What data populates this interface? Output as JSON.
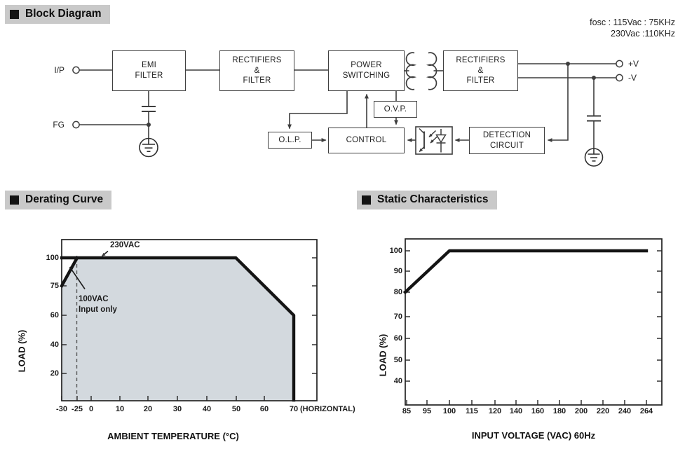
{
  "sections": {
    "block_diagram": "Block Diagram",
    "derating": "Derating Curve",
    "static": "Static Characteristics"
  },
  "block_diagram": {
    "fosc_line1": "fosc : 115Vac : 75KHz",
    "fosc_line2": "230Vac :110KHz",
    "boxes": {
      "emi": "EMI\nFILTER",
      "rect1": "RECTIFIERS\n&\nFILTER",
      "power_switching": "POWER\nSWITCHING",
      "rect2": "RECTIFIERS\n&\nFILTER",
      "ovp": "O.V.P.",
      "olp": "O.L.P.",
      "control": "CONTROL",
      "detection": "DETECTION\nCIRCUIT"
    },
    "terminals": {
      "input": "I/P",
      "fg": "FG",
      "v_plus": "+V",
      "v_minus": "-V"
    },
    "icons": [
      "optocoupler-icon",
      "transformer-icon",
      "earth-ground-icon",
      "capacitor-icon"
    ]
  },
  "chart_data": [
    {
      "type": "line",
      "title": "Derating Curve",
      "xlabel": "AMBIENT TEMPERATURE (°C)",
      "ylabel": "LOAD (%)",
      "x_ticks": [
        "-30",
        "-25",
        "0",
        "10",
        "20",
        "30",
        "40",
        "50",
        "60",
        "70"
      ],
      "x_suffix": "(HORIZONTAL)",
      "y_ticks": [
        "100",
        "75",
        "60",
        "40",
        "20"
      ],
      "xlim": [
        -30,
        78
      ],
      "ylim": [
        0,
        115
      ],
      "grid": false,
      "legend_position": "inline-annotations",
      "series": [
        {
          "name": "230VAC",
          "points": [
            [
              -30,
              100
            ],
            [
              50,
              100
            ],
            [
              70,
              60
            ],
            [
              70,
              0
            ]
          ]
        },
        {
          "name": "100VAC Input only",
          "points": [
            [
              -30,
              75
            ],
            [
              -25,
              100
            ]
          ]
        }
      ],
      "fill_area": [
        [
          -30,
          75
        ],
        [
          -25,
          100
        ],
        [
          50,
          100
        ],
        [
          70,
          60
        ],
        [
          70,
          0
        ],
        [
          -30,
          0
        ]
      ],
      "dashed_vline_x": -25,
      "annotations": [
        {
          "text": "230VAC",
          "points_to": "100% load line"
        },
        {
          "text": "100VAC\nInput only",
          "points_to": "rising segment -30 to -25"
        }
      ]
    },
    {
      "type": "line",
      "title": "Static Characteristics",
      "xlabel": "INPUT VOLTAGE (VAC) 60Hz",
      "ylabel": "LOAD (%)",
      "x_ticks": [
        "85",
        "95",
        "100",
        "115",
        "120",
        "140",
        "160",
        "180",
        "200",
        "220",
        "240",
        "264"
      ],
      "y_ticks": [
        "100",
        "90",
        "80",
        "70",
        "60",
        "50",
        "40"
      ],
      "xlim": [
        85,
        264
      ],
      "ylim": [
        30,
        106
      ],
      "grid": false,
      "series": [
        {
          "name": "load",
          "points": [
            [
              85,
              80
            ],
            [
              100,
              100
            ],
            [
              264,
              100
            ]
          ]
        }
      ]
    }
  ]
}
